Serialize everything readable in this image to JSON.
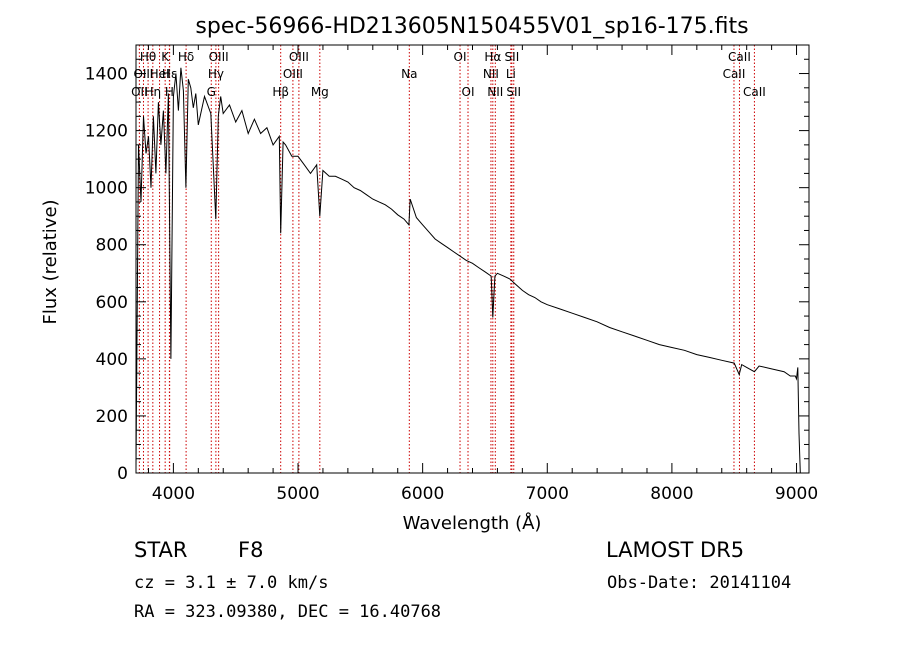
{
  "chart_data": {
    "type": "line",
    "title": "spec-56966-HD213605N150455V01_sp16-175.fits",
    "xlabel": "Wavelength (Å)",
    "ylabel": "Flux (relative)",
    "xlim": [
      3700,
      9100
    ],
    "ylim": [
      0,
      1500
    ],
    "x_ticks": [
      4000,
      5000,
      6000,
      7000,
      8000,
      9000
    ],
    "y_ticks": [
      0,
      200,
      400,
      600,
      800,
      1000,
      1200,
      1400
    ],
    "grid": false,
    "series": [
      {
        "x": [
          3700,
          3720,
          3740,
          3760,
          3780,
          3800,
          3820,
          3840,
          3860,
          3880,
          3900,
          3920,
          3940,
          3960,
          3980,
          4000,
          4020,
          4040,
          4060,
          4080,
          4100,
          4120,
          4140,
          4160,
          4180,
          4200,
          4250,
          4300,
          4340,
          4360,
          4380,
          4400,
          4450,
          4500,
          4550,
          4600,
          4650,
          4700,
          4750,
          4800,
          4850,
          4861,
          4880,
          4900,
          4950,
          5000,
          5050,
          5100,
          5150,
          5175,
          5200,
          5250,
          5300,
          5350,
          5400,
          5450,
          5500,
          5550,
          5600,
          5650,
          5700,
          5750,
          5800,
          5850,
          5890,
          5900,
          5950,
          6000,
          6050,
          6100,
          6150,
          6200,
          6250,
          6300,
          6350,
          6400,
          6450,
          6500,
          6550,
          6563,
          6580,
          6600,
          6650,
          6700,
          6750,
          6800,
          6850,
          6900,
          6950,
          7000,
          7100,
          7200,
          7300,
          7400,
          7500,
          7600,
          7700,
          7800,
          7900,
          8000,
          8100,
          8200,
          8300,
          8400,
          8500,
          8540,
          8560,
          8600,
          8662,
          8700,
          8800,
          8900,
          8950,
          8990,
          9000,
          9010,
          9020,
          9030
        ],
        "y": [
          20,
          1150,
          950,
          1250,
          1120,
          1180,
          1000,
          1250,
          1050,
          1300,
          1150,
          1270,
          1050,
          1330,
          400,
          1320,
          1400,
          1270,
          1420,
          1340,
          1000,
          1380,
          1350,
          1280,
          1330,
          1220,
          1320,
          1260,
          890,
          1250,
          1320,
          1260,
          1290,
          1230,
          1270,
          1190,
          1240,
          1190,
          1210,
          1150,
          1180,
          840,
          1160,
          1150,
          1110,
          1110,
          1080,
          1050,
          1080,
          900,
          1060,
          1040,
          1040,
          1030,
          1020,
          1000,
          990,
          975,
          960,
          950,
          940,
          925,
          905,
          890,
          870,
          960,
          895,
          870,
          845,
          820,
          805,
          790,
          775,
          760,
          745,
          735,
          720,
          705,
          690,
          545,
          690,
          700,
          690,
          680,
          660,
          640,
          625,
          615,
          600,
          590,
          575,
          560,
          545,
          530,
          510,
          495,
          480,
          465,
          450,
          440,
          430,
          415,
          405,
          395,
          385,
          345,
          380,
          370,
          355,
          375,
          365,
          355,
          340,
          340,
          330,
          370,
          140,
          0
        ]
      }
    ],
    "lines": [
      {
        "name": "OII",
        "wavelength": 3727,
        "row": 3
      },
      {
        "name": "OIII",
        "wavelength": 3760,
        "row": 2
      },
      {
        "name": "Hθ",
        "wavelength": 3797,
        "row": 1
      },
      {
        "name": "Hη",
        "wavelength": 3835,
        "row": 3
      },
      {
        "name": "HeI",
        "wavelength": 3889,
        "row": 2
      },
      {
        "name": "K",
        "wavelength": 3934,
        "row": 1
      },
      {
        "name": "H",
        "wavelength": 3968,
        "row": 3
      },
      {
        "name": "Hε",
        "wavelength": 3970,
        "row": 2
      },
      {
        "name": "Hδ",
        "wavelength": 4102,
        "row": 1
      },
      {
        "name": "G",
        "wavelength": 4304,
        "row": 3
      },
      {
        "name": "Hγ",
        "wavelength": 4341,
        "row": 2
      },
      {
        "name": "OIII",
        "wavelength": 4363,
        "row": 1
      },
      {
        "name": "Hβ",
        "wavelength": 4861,
        "row": 3
      },
      {
        "name": "OIII",
        "wavelength": 4959,
        "row": 2
      },
      {
        "name": "OIII",
        "wavelength": 5007,
        "row": 1
      },
      {
        "name": "Mg",
        "wavelength": 5175,
        "row": 3
      },
      {
        "name": "Na",
        "wavelength": 5893,
        "row": 2
      },
      {
        "name": "OI",
        "wavelength": 6300,
        "row": 1
      },
      {
        "name": "OI",
        "wavelength": 6364,
        "row": 3
      },
      {
        "name": "NII",
        "wavelength": 6548,
        "row": 2
      },
      {
        "name": "Hα",
        "wavelength": 6563,
        "row": 1
      },
      {
        "name": "NII",
        "wavelength": 6583,
        "row": 3
      },
      {
        "name": "Li",
        "wavelength": 6708,
        "row": 2
      },
      {
        "name": "SII",
        "wavelength": 6716,
        "row": 1
      },
      {
        "name": "SII",
        "wavelength": 6731,
        "row": 3
      },
      {
        "name": "CaII",
        "wavelength": 8498,
        "row": 2
      },
      {
        "name": "CaII",
        "wavelength": 8542,
        "row": 1
      },
      {
        "name": "CaII",
        "wavelength": 8662,
        "row": 3
      }
    ]
  },
  "footer": {
    "object_type": "STAR",
    "subclass": "F8",
    "survey": "LAMOST DR5",
    "redshift": "cz = 3.1 ± 7.0 km/s",
    "obs_date": "Obs-Date: 20141104",
    "coords": "RA = 323.09380, DEC =  16.40768"
  },
  "colors": {
    "spectrum": "#000000",
    "line_marker": "#cc0000",
    "background": "#ffffff"
  }
}
